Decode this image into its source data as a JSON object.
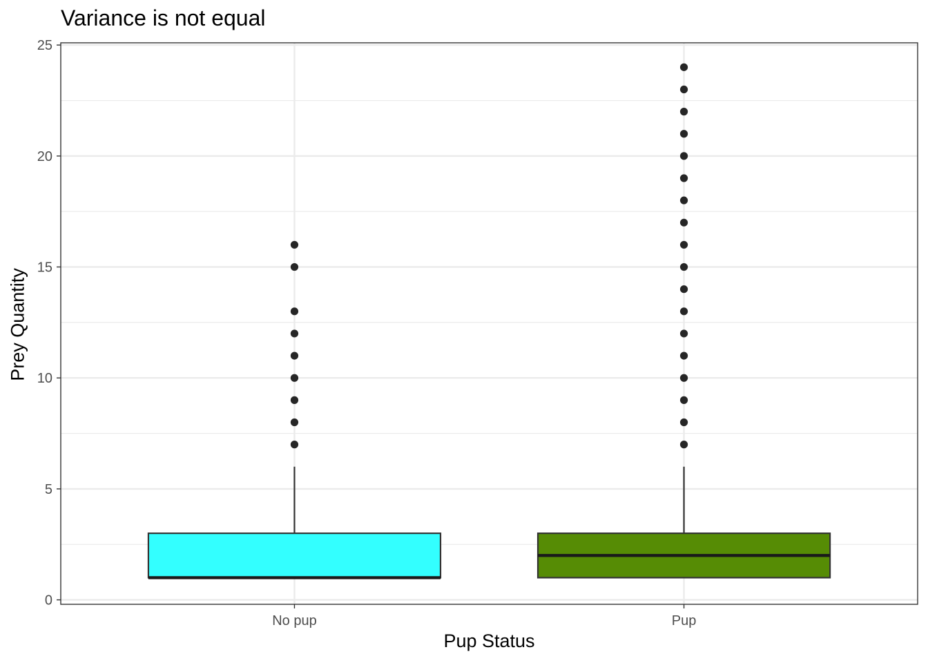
{
  "chart_data": {
    "type": "boxplot",
    "title": "Variance is not equal",
    "xlabel": "Pup Status",
    "ylabel": "Prey Quantity",
    "ylim": [
      -0.2,
      25.1
    ],
    "y_ticks": [
      0,
      5,
      10,
      15,
      20,
      25
    ],
    "grid": true,
    "categories": [
      "No pup",
      "Pup"
    ],
    "boxes": [
      {
        "category": "No pup",
        "fill": "#33FFFF",
        "q1": 1,
        "median": 1,
        "q3": 3,
        "whisker_low": 1,
        "whisker_high": 6,
        "outliers": [
          7,
          8,
          9,
          10,
          11,
          12,
          13,
          15,
          16
        ]
      },
      {
        "category": "Pup",
        "fill": "#568C05",
        "q1": 1,
        "median": 2,
        "q3": 3,
        "whisker_low": 1,
        "whisker_high": 6,
        "outliers": [
          7,
          8,
          9,
          10,
          11,
          12,
          13,
          14,
          15,
          16,
          17,
          18,
          19,
          20,
          21,
          22,
          23,
          24
        ]
      }
    ]
  }
}
